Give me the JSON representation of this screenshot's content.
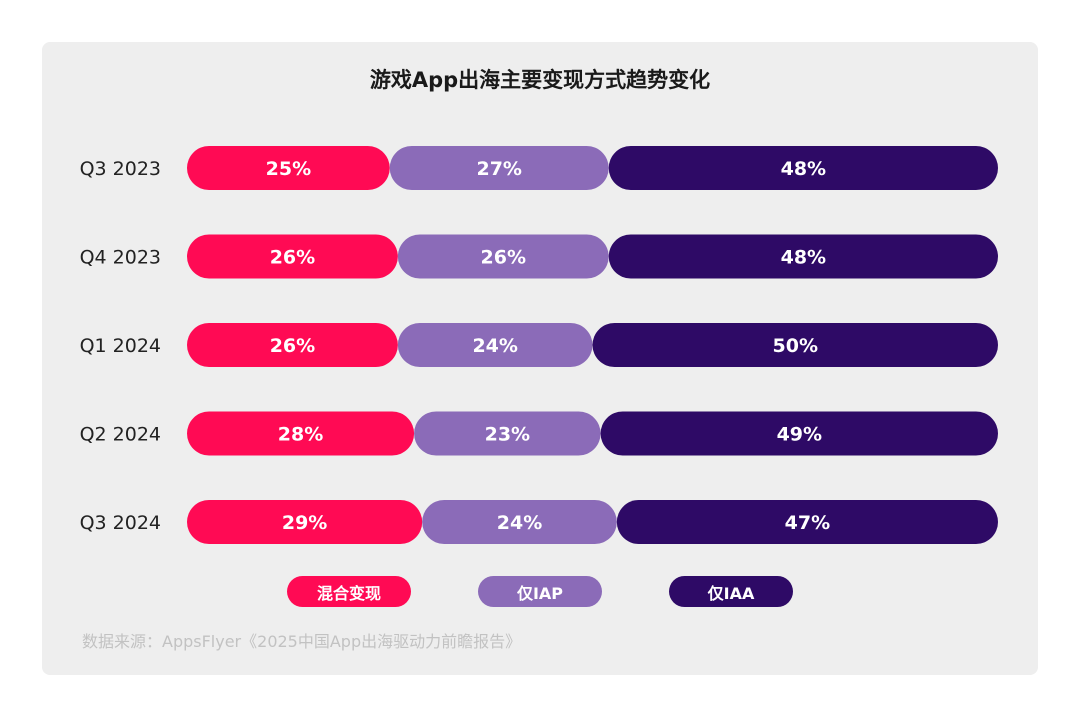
{
  "chart_data": {
    "type": "bar",
    "orientation": "horizontal",
    "stacked": true,
    "normalized": true,
    "title": "游戏App出海主要变现方式趋势变化",
    "categories": [
      "Q3 2023",
      "Q4 2023",
      "Q1 2024",
      "Q2 2024",
      "Q3 2024"
    ],
    "series": [
      {
        "name": "混合变现",
        "color": "#ff0a54",
        "values": [
          25,
          26,
          26,
          28,
          29
        ]
      },
      {
        "name": "仅IAP",
        "color": "#8b6bb8",
        "values": [
          27,
          26,
          24,
          23,
          24
        ]
      },
      {
        "name": "仅IAA",
        "color": "#2e0a66",
        "values": [
          48,
          48,
          50,
          49,
          47
        ]
      }
    ],
    "value_suffix": "%",
    "legend_position": "bottom"
  },
  "source": "数据来源：AppsFlyer《2025中国App出海驱动力前瞻报告》"
}
